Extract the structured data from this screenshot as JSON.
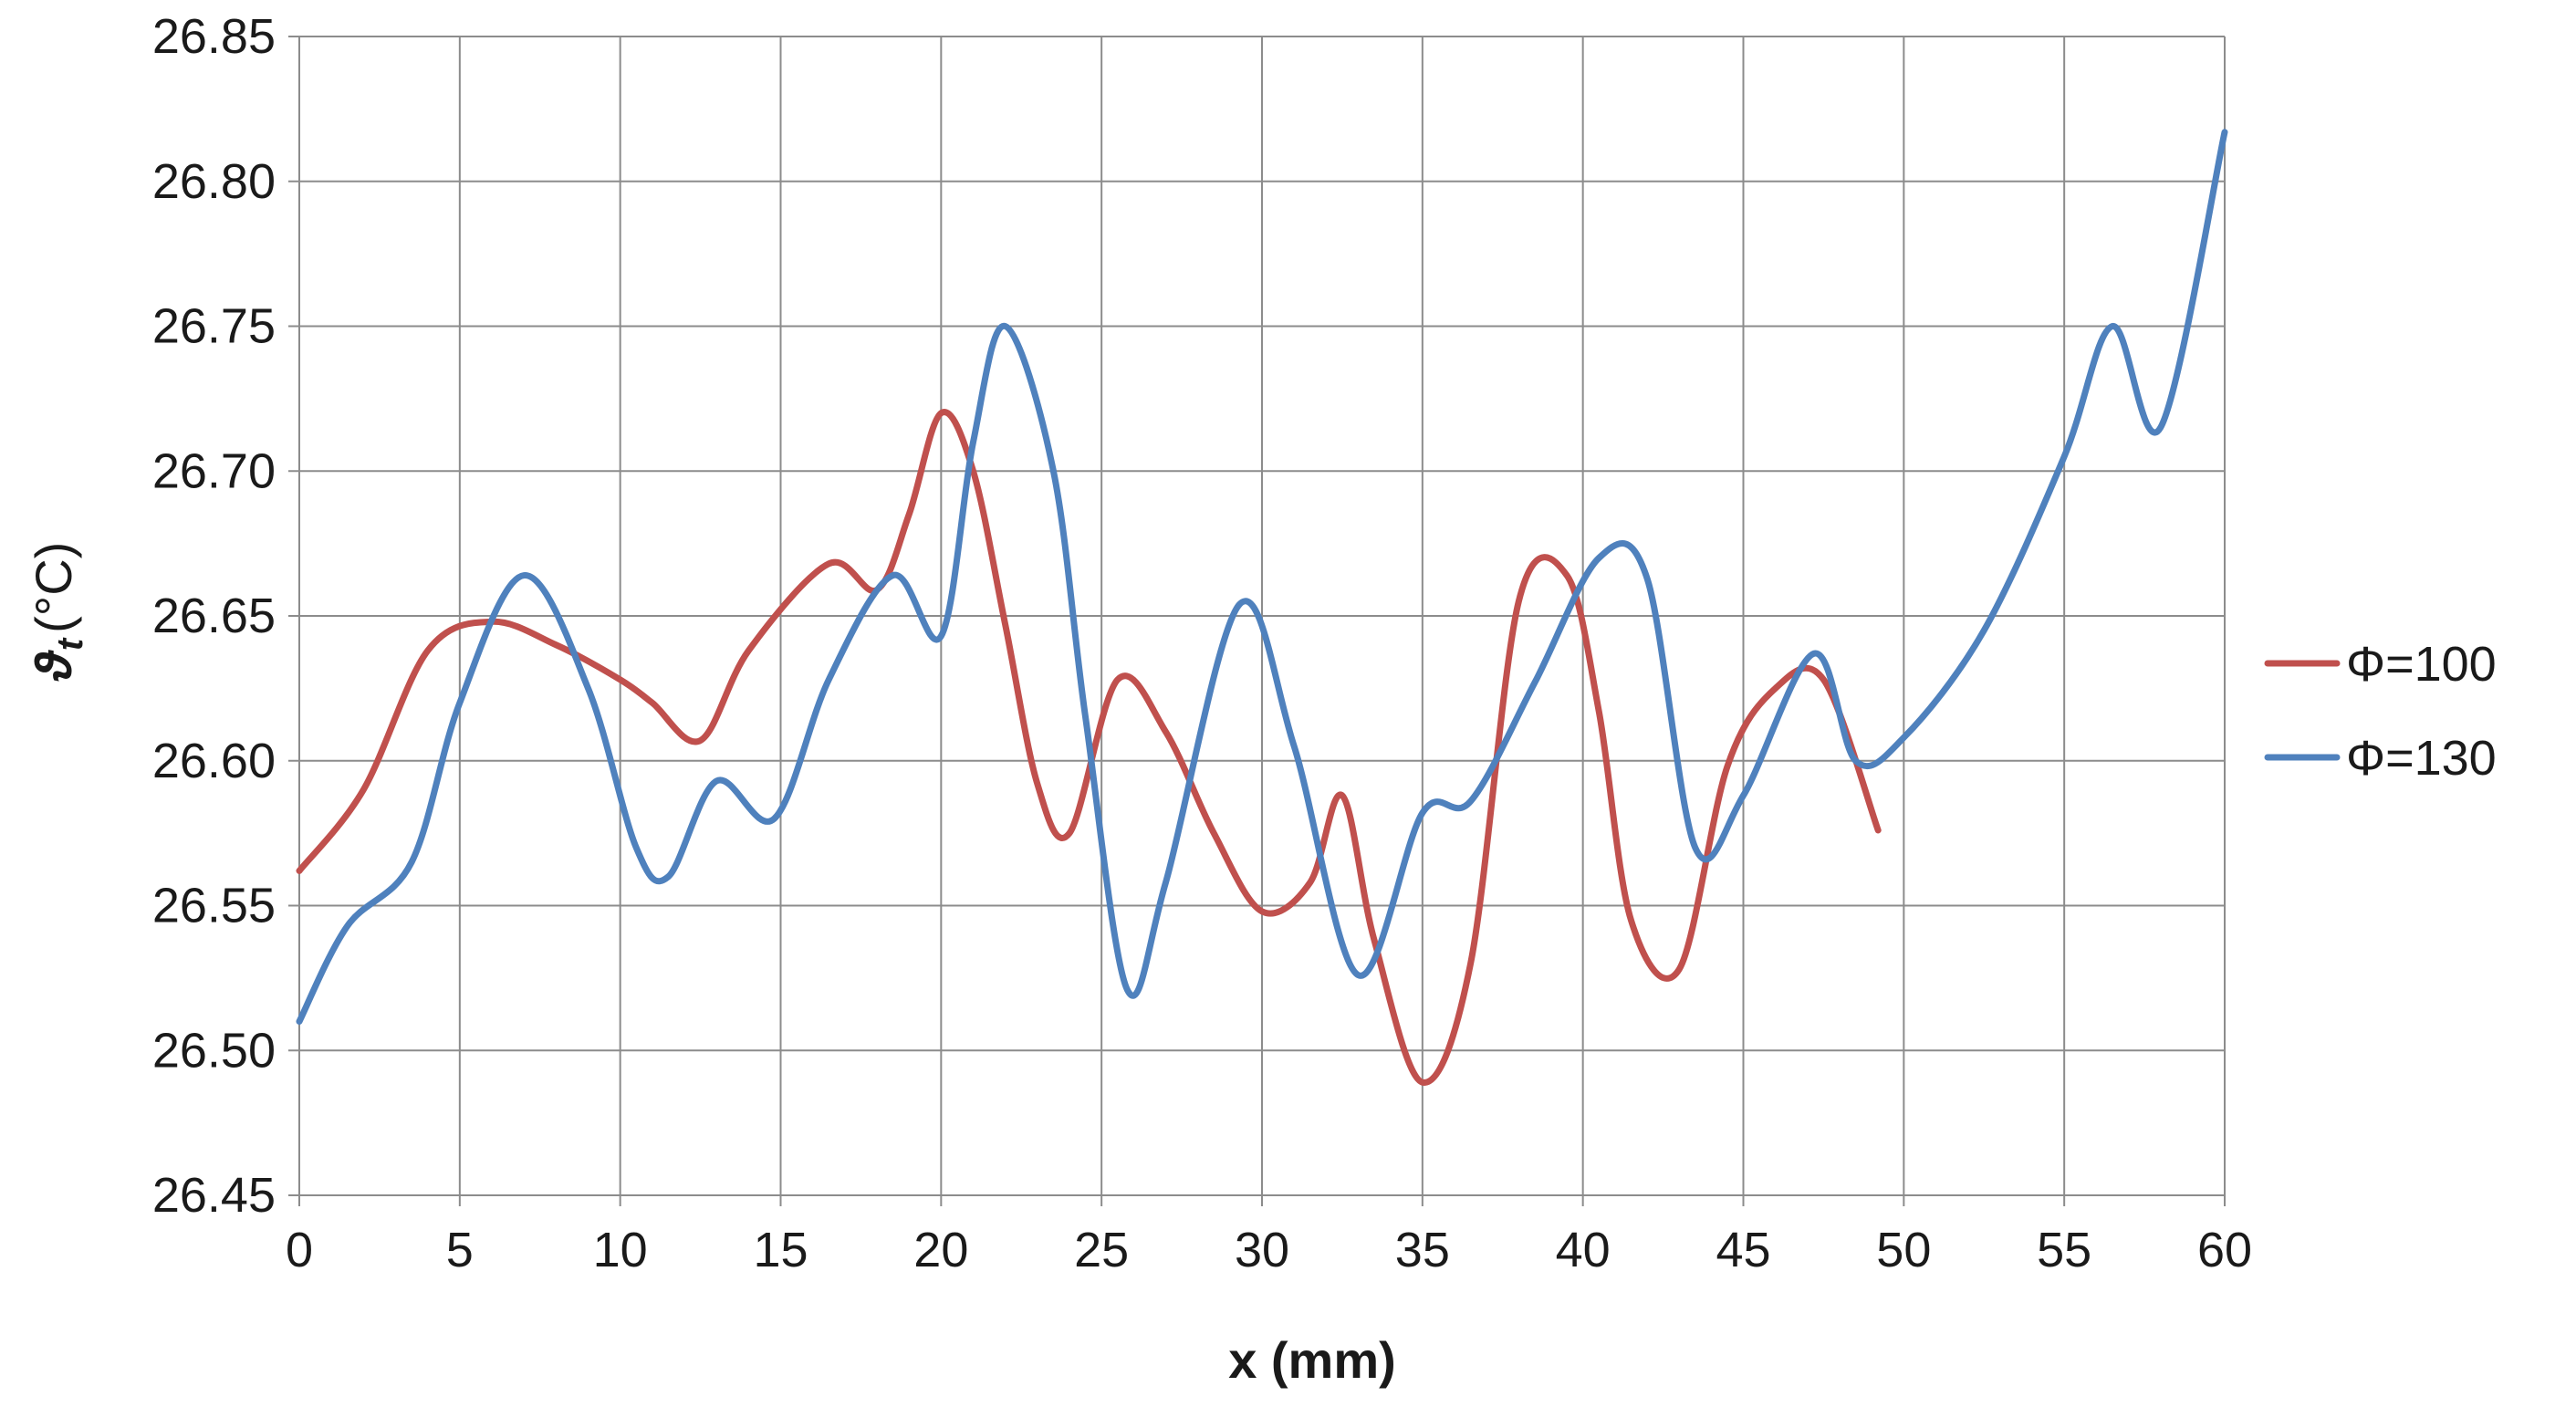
{
  "chart_data": {
    "type": "line",
    "title": "",
    "xlabel": "x (mm)",
    "ylabel": {
      "symbol": "ϑ",
      "subscript": "t",
      "unit": "(°C)"
    },
    "xlim": [
      0,
      60
    ],
    "ylim": [
      26.45,
      26.85
    ],
    "xticks": [
      "0",
      "5",
      "10",
      "15",
      "20",
      "25",
      "30",
      "35",
      "40",
      "45",
      "50",
      "55",
      "60"
    ],
    "yticks": [
      "26.45",
      "26.50",
      "26.55",
      "26.60",
      "26.65",
      "26.70",
      "26.75",
      "26.80",
      "26.85"
    ],
    "grid": true,
    "legend_position": "right",
    "series": [
      {
        "name": "Φ=100",
        "color": "#c0504d",
        "x": [
          0,
          2,
          4,
          6,
          8,
          10,
          11,
          12.5,
          14,
          16.5,
          18,
          19,
          20,
          21,
          22,
          23,
          24,
          25.5,
          27,
          28.5,
          30,
          31.5,
          32.5,
          33.5,
          35,
          36.5,
          38,
          39.5,
          40.5,
          41.5,
          43,
          44.5,
          46,
          47.5,
          49.2
        ],
        "y": [
          26.562,
          26.59,
          26.638,
          26.648,
          26.64,
          26.628,
          26.62,
          26.607,
          26.638,
          26.668,
          26.659,
          26.685,
          26.72,
          26.7,
          26.647,
          26.592,
          26.575,
          26.628,
          26.61,
          26.575,
          26.548,
          26.558,
          26.588,
          26.538,
          26.489,
          26.53,
          26.655,
          26.664,
          26.617,
          26.545,
          26.528,
          26.598,
          26.625,
          26.628,
          26.576
        ]
      },
      {
        "name": "Φ=130",
        "color": "#4f81bd",
        "x": [
          0,
          1.5,
          3.5,
          5,
          7,
          9,
          10.5,
          11.5,
          13,
          14.8,
          16.5,
          18.5,
          20,
          21,
          22,
          23.5,
          24.5,
          25.8,
          27,
          29.3,
          31,
          33,
          35,
          36.5,
          38.5,
          40.5,
          42,
          43.5,
          45,
          47.2,
          48.5,
          50,
          52.5,
          55,
          56.5,
          58,
          60
        ],
        "y": [
          26.51,
          26.543,
          26.565,
          26.62,
          26.664,
          26.625,
          26.57,
          26.56,
          26.593,
          26.58,
          26.628,
          26.664,
          26.643,
          26.71,
          26.75,
          26.7,
          26.615,
          26.521,
          26.558,
          26.654,
          26.605,
          26.526,
          26.582,
          26.586,
          26.627,
          26.67,
          26.663,
          26.57,
          26.588,
          26.637,
          26.6,
          26.608,
          26.645,
          26.705,
          26.75,
          26.715,
          26.817
        ]
      }
    ]
  }
}
